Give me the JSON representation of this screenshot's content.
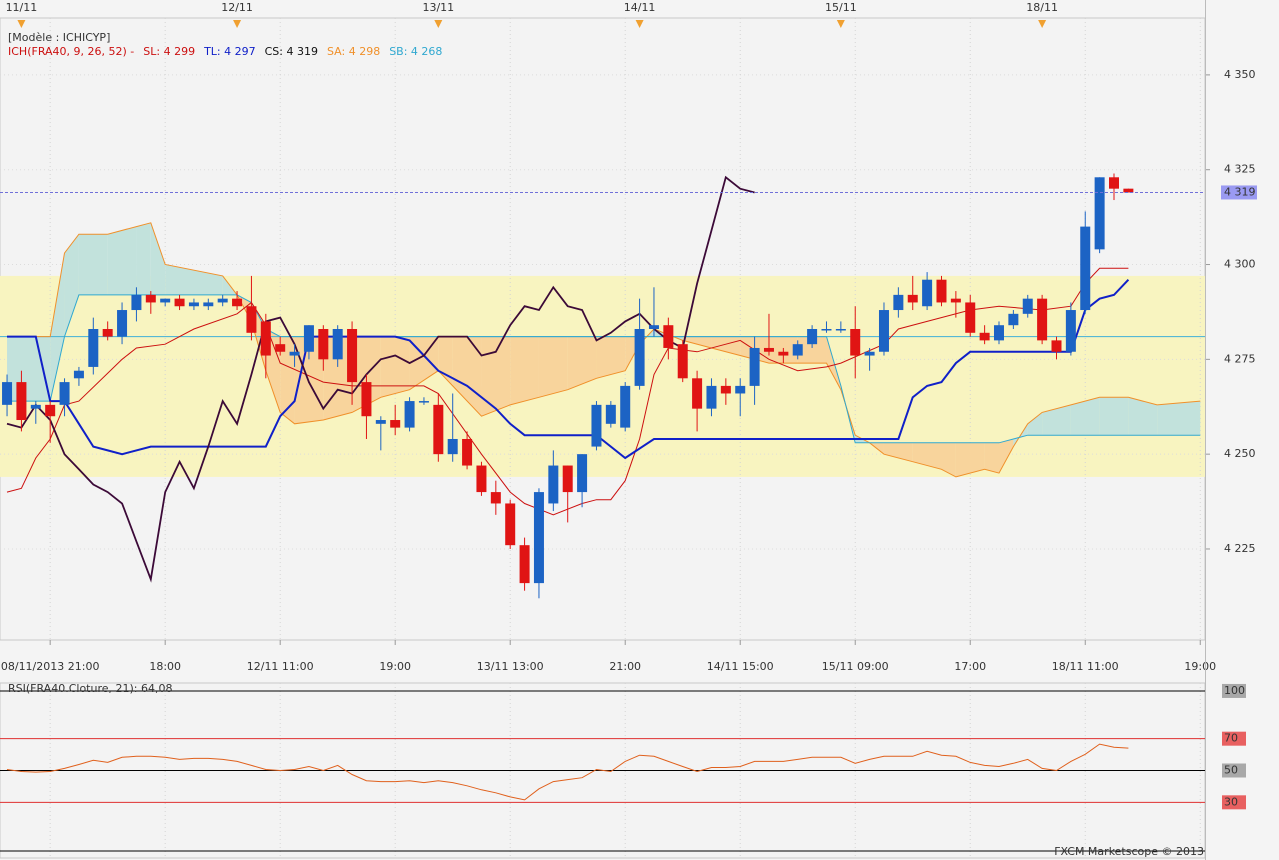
{
  "chart_data": [
    {
      "type": "candlestick",
      "model_label": "[Modèle : ICHICYP]",
      "indicator_label": "ICH(FRA40, 9, 26, 52) -",
      "x": [
        0,
        1,
        2,
        3,
        4,
        5,
        6,
        7,
        8,
        9,
        10,
        11,
        12,
        13,
        14,
        15,
        16,
        17,
        18,
        19,
        20,
        21,
        22,
        23,
        24,
        25,
        26,
        27,
        28,
        29,
        30,
        31,
        32,
        33,
        34,
        35,
        36,
        37,
        38,
        39,
        40,
        41,
        42,
        43,
        44,
        45,
        46,
        47,
        48,
        49,
        50,
        51,
        52,
        53,
        54,
        55,
        56,
        57,
        58,
        59,
        60,
        61,
        62,
        63,
        64,
        65,
        66,
        67,
        68,
        69,
        70,
        71,
        72,
        73,
        74,
        75,
        76,
        77,
        78
      ],
      "open": [
        4263,
        4269,
        4262,
        4263,
        4263,
        4270,
        4273,
        4283,
        4281,
        4288,
        4292,
        4290,
        4291,
        4289,
        4289,
        4290,
        4291,
        4289,
        4285,
        4279,
        4276,
        4277,
        4283,
        4275,
        4283,
        4269,
        4258,
        4259,
        4257,
        4264,
        4263,
        4250,
        4254,
        4247,
        4240,
        4237,
        4226,
        4216,
        4237,
        4247,
        4240,
        4252,
        4258,
        4257,
        4268,
        4283,
        4284,
        4279,
        4270,
        4262,
        4268,
        4266,
        4268,
        4278,
        4277,
        4276,
        4279,
        4283,
        4283,
        4283,
        4276,
        4277,
        4288,
        4292,
        4289,
        4296,
        4291,
        4290,
        4282,
        4280,
        4284,
        4287,
        4291,
        4280,
        4277,
        4288,
        4304,
        4323,
        4320
      ],
      "high": [
        4271,
        4272,
        4264,
        4264,
        4270,
        4273,
        4286,
        4285,
        4290,
        4294,
        4293,
        4291,
        4292,
        4291,
        4291,
        4292,
        4293,
        4297,
        4287,
        4281,
        4279,
        4284,
        4284,
        4284,
        4285,
        4271,
        4260,
        4263,
        4265,
        4265,
        4266,
        4266,
        4256,
        4248,
        4243,
        4238,
        4228,
        4241,
        4251,
        4247,
        4250,
        4264,
        4264,
        4269,
        4291,
        4294,
        4286,
        4280,
        4272,
        4270,
        4270,
        4270,
        4281,
        4287,
        4278,
        4280,
        4284,
        4285,
        4285,
        4289,
        4278,
        4290,
        4294,
        4297,
        4298,
        4297,
        4293,
        4292,
        4284,
        4285,
        4288,
        4292,
        4292,
        4281,
        4290,
        4314,
        4323,
        4324,
        4320
      ],
      "low": [
        4260,
        4256,
        4258,
        4253,
        4260,
        4268,
        4271,
        4280,
        4279,
        4285,
        4287,
        4289,
        4288,
        4288,
        4288,
        4289,
        4288,
        4280,
        4270,
        4276,
        4273,
        4275,
        4272,
        4273,
        4263,
        4254,
        4251,
        4255,
        4256,
        4263,
        4248,
        4248,
        4246,
        4239,
        4234,
        4225,
        4214,
        4212,
        4235,
        4232,
        4236,
        4251,
        4257,
        4256,
        4267,
        4281,
        4275,
        4269,
        4256,
        4260,
        4263,
        4260,
        4263,
        4276,
        4274,
        4275,
        4278,
        4282,
        4282,
        4270,
        4272,
        4276,
        4286,
        4288,
        4288,
        4289,
        4286,
        4281,
        4279,
        4279,
        4283,
        4286,
        4279,
        4275,
        4276,
        4287,
        4303,
        4317,
        4319
      ],
      "close": [
        4269,
        4259,
        4263,
        4260,
        4269,
        4272,
        4283,
        4281,
        4288,
        4292,
        4290,
        4291,
        4289,
        4290,
        4290,
        4291,
        4289,
        4282,
        4276,
        4277,
        4277,
        4284,
        4275,
        4283,
        4269,
        4260,
        4259,
        4257,
        4264,
        4264,
        4250,
        4254,
        4247,
        4240,
        4237,
        4226,
        4216,
        4240,
        4247,
        4240,
        4250,
        4263,
        4263,
        4268,
        4283,
        4284,
        4278,
        4270,
        4262,
        4268,
        4266,
        4268,
        4278,
        4277,
        4276,
        4279,
        4283,
        4283,
        4283,
        4276,
        4277,
        4288,
        4292,
        4290,
        4296,
        4290,
        4290,
        4282,
        4280,
        4284,
        4287,
        4291,
        4280,
        4277,
        4288,
        4310,
        4323,
        4320,
        4319
      ],
      "up_color": "#1c63c4",
      "down_color": "#e01414",
      "series": [
        {
          "name": "SL: 4 299",
          "color": "#cc1010",
          "x": [
            0,
            1,
            2,
            3,
            4,
            5,
            8,
            9,
            11,
            13,
            16,
            17,
            18,
            19,
            22,
            24,
            29,
            30,
            33,
            35,
            36,
            38,
            40,
            41,
            42,
            43,
            44,
            45,
            46,
            48,
            50,
            51,
            53,
            55,
            57,
            58,
            61,
            62,
            64,
            67,
            69,
            72,
            74,
            75,
            76,
            78
          ],
          "values": [
            4240,
            4241,
            4249,
            4254,
            4263,
            4264,
            4275,
            4278,
            4279,
            4283,
            4287,
            4290,
            4284,
            4274,
            4269,
            4268,
            4268,
            4266,
            4250,
            4240,
            4237,
            4234,
            4237,
            4238,
            4238,
            4243,
            4254,
            4271,
            4278,
            4277,
            4279,
            4280,
            4275,
            4272,
            4273,
            4274,
            4279,
            4283,
            4285,
            4288,
            4289,
            4288,
            4289,
            4295,
            4299,
            4299
          ]
        },
        {
          "name": "TL: 4 297",
          "color": "#1020c8",
          "x": [
            0,
            2,
            3,
            4,
            5,
            6,
            7,
            8,
            10,
            18,
            19,
            20,
            21,
            27,
            28,
            29,
            30,
            31,
            32,
            34,
            35,
            36,
            41,
            43,
            45,
            58,
            62,
            63,
            64,
            65,
            66,
            67,
            74,
            75,
            76,
            77,
            78
          ],
          "values": [
            4281,
            4281,
            4264,
            4264,
            4258,
            4252,
            4251,
            4250,
            4252,
            4252,
            4260,
            4264,
            4281,
            4281,
            4280,
            4276,
            4272,
            4270,
            4268,
            4262,
            4258,
            4255,
            4255,
            4249,
            4254,
            4254,
            4254,
            4265,
            4268,
            4269,
            4274,
            4277,
            4277,
            4288,
            4291,
            4292,
            4296
          ]
        },
        {
          "name": "CS: 4 319",
          "color": "#3c0a38",
          "x": [
            0,
            1,
            2,
            3,
            4,
            5,
            6,
            7,
            8,
            9,
            10,
            11,
            12,
            13,
            14,
            15,
            16,
            17,
            18,
            19,
            20,
            21,
            22,
            23,
            24,
            25,
            26,
            27,
            28,
            29,
            30,
            31,
            32,
            33,
            34,
            35,
            36,
            37,
            38,
            39,
            40,
            41,
            42,
            43,
            44,
            45,
            46,
            47,
            48,
            49,
            50,
            51,
            52
          ],
          "values": [
            4258,
            4257,
            4263,
            4259,
            4250,
            4246,
            4242,
            4240,
            4237,
            4227,
            4217,
            4240,
            4248,
            4241,
            4252,
            4264,
            4258,
            4271,
            4285,
            4286,
            4279,
            4269,
            4262,
            4267,
            4266,
            4271,
            4275,
            4276,
            4274,
            4276,
            4281,
            4281,
            4281,
            4276,
            4277,
            4284,
            4289,
            4288,
            4294,
            4289,
            4288,
            4280,
            4282,
            4285,
            4287,
            4283,
            4280,
            4278,
            4295,
            4309,
            4323,
            4320,
            4319
          ]
        },
        {
          "name": "SA: 4 298",
          "color": "#f0902a",
          "x": [
            0,
            3,
            4,
            5,
            7,
            9,
            10,
            11,
            15,
            16,
            17,
            18,
            19,
            20,
            22,
            24,
            26,
            28,
            30,
            31,
            33,
            35,
            37,
            39,
            41,
            43,
            44,
            45,
            47,
            49,
            51,
            53,
            55,
            57,
            58,
            59,
            60,
            61,
            63,
            65,
            66,
            68,
            69,
            70,
            71,
            72,
            74,
            76,
            78,
            80,
            83
          ],
          "values": [
            4281,
            4281,
            4303,
            4308,
            4308,
            4310,
            4311,
            4300,
            4297,
            4292,
            4285,
            4272,
            4261,
            4258,
            4259,
            4261,
            4265,
            4267,
            4272,
            4268,
            4260,
            4263,
            4265,
            4267,
            4270,
            4272,
            4279,
            4283,
            4280,
            4278,
            4276,
            4274,
            4274,
            4274,
            4267,
            4255,
            4253,
            4250,
            4248,
            4246,
            4244,
            4246,
            4245,
            4252,
            4258,
            4261,
            4263,
            4265,
            4265,
            4263,
            4264
          ]
        },
        {
          "name": "SB: 4 268",
          "color": "#30a8d0",
          "x": [
            0,
            3,
            4,
            5,
            7,
            9,
            10,
            11,
            15,
            16,
            17,
            18,
            19,
            20,
            22,
            24,
            26,
            28,
            30,
            31,
            33,
            35,
            37,
            39,
            41,
            43,
            44,
            45,
            47,
            49,
            51,
            53,
            55,
            57,
            58,
            59,
            60,
            61,
            63,
            65,
            66,
            68,
            69,
            70,
            71,
            72,
            74,
            76,
            78,
            80,
            83
          ],
          "values": [
            4264,
            4264,
            4281,
            4292,
            4292,
            4292,
            4292,
            4292,
            4292,
            4292,
            4290,
            4283,
            4281,
            4281,
            4281,
            4281,
            4281,
            4281,
            4281,
            4281,
            4281,
            4281,
            4281,
            4281,
            4281,
            4281,
            4281,
            4281,
            4281,
            4281,
            4281,
            4281,
            4281,
            4281,
            4268,
            4253,
            4253,
            4253,
            4253,
            4253,
            4253,
            4253,
            4253,
            4254,
            4255,
            4255,
            4255,
            4255,
            4255,
            4255,
            4255
          ]
        }
      ],
      "cloud_colors": [
        "#c2e2dc",
        "#f8d49c"
      ],
      "zone": [
        4244,
        4297
      ],
      "zone_color": "#f8f4c0",
      "level": 4281,
      "level_color": "#40b0d8",
      "last_price": {
        "value": 4319,
        "label": "4 319"
      },
      "xlim": [
        -0.49,
        83.33
      ],
      "ylim": [
        4201,
        4365
      ],
      "yticks": [
        {
          "value": 4225,
          "label": "4 225"
        },
        {
          "value": 4250,
          "label": "4 250"
        },
        {
          "value": 4275,
          "label": "4 275"
        },
        {
          "value": 4300,
          "label": "4 300"
        },
        {
          "value": 4325,
          "label": "4 325"
        },
        {
          "value": 4350,
          "label": "4 350"
        }
      ],
      "xticks": [
        {
          "value": 3,
          "label": "08/11/2013 21:00"
        },
        {
          "value": 11,
          "label": "18:00"
        },
        {
          "value": 19,
          "label": "12/11 11:00"
        },
        {
          "value": 27,
          "label": "19:00"
        },
        {
          "value": 35,
          "label": "13/11 13:00"
        },
        {
          "value": 43,
          "label": "21:00"
        },
        {
          "value": 51,
          "label": "14/11 15:00"
        },
        {
          "value": 59,
          "label": "15/11 09:00"
        },
        {
          "value": 67,
          "label": "17:00"
        },
        {
          "value": 75,
          "label": "18/11 11:00"
        },
        {
          "value": 83,
          "label": "19:00"
        }
      ],
      "top_ticks": [
        {
          "value": 1,
          "label": "11/11"
        },
        {
          "value": 16,
          "label": "12/11"
        },
        {
          "value": 30,
          "label": "13/11"
        },
        {
          "value": 44,
          "label": "14/11"
        },
        {
          "value": 58,
          "label": "15/11"
        },
        {
          "value": 72,
          "label": "18/11"
        }
      ],
      "grid": true
    },
    {
      "type": "line",
      "title": "RSI(FRA40.Cloture, 21): 64,08",
      "x": [
        0,
        1,
        2,
        3,
        4,
        5,
        6,
        7,
        8,
        9,
        10,
        11,
        12,
        13,
        14,
        15,
        16,
        17,
        18,
        19,
        20,
        21,
        22,
        23,
        24,
        25,
        26,
        27,
        28,
        29,
        30,
        31,
        32,
        33,
        34,
        35,
        36,
        37,
        38,
        39,
        40,
        41,
        42,
        43,
        44,
        45,
        46,
        47,
        48,
        49,
        50,
        51,
        52,
        53,
        54,
        55,
        56,
        57,
        58,
        59,
        60,
        61,
        62,
        63,
        64,
        65,
        66,
        67,
        68,
        69,
        70,
        71,
        72,
        73,
        74,
        75,
        76,
        77,
        78
      ],
      "series": [
        {
          "color": "#e0601c",
          "values": [
            50.6,
            49.4,
            49.0,
            49.4,
            51.3,
            53.8,
            56.4,
            55.1,
            58.3,
            58.9,
            58.9,
            58.3,
            57.0,
            57.6,
            57.6,
            57.0,
            55.7,
            53.2,
            50.6,
            50.0,
            50.6,
            52.5,
            50.0,
            53.2,
            47.5,
            43.6,
            43.0,
            43.0,
            43.6,
            42.4,
            43.6,
            42.4,
            40.4,
            37.9,
            36.0,
            33.4,
            31.5,
            38.5,
            43.0,
            44.3,
            45.5,
            50.6,
            49.4,
            55.7,
            59.6,
            58.9,
            55.7,
            52.5,
            49.4,
            51.9,
            51.9,
            52.5,
            55.7,
            55.7,
            55.7,
            57.0,
            58.3,
            58.3,
            58.3,
            54.5,
            57.0,
            58.9,
            58.9,
            58.9,
            62.1,
            59.6,
            58.9,
            55.1,
            53.2,
            52.5,
            54.5,
            57.0,
            51.3,
            50.0,
            55.7,
            60.2,
            66.6,
            64.6,
            64.08
          ]
        }
      ],
      "xlim": [
        -0.49,
        83.33
      ],
      "ylim": [
        -5,
        105
      ],
      "yticks": [
        100,
        70,
        50,
        30
      ],
      "tick_colors": [
        "#000000",
        "#e03030",
        "#000000",
        "#e03030"
      ],
      "xticks": [
        3,
        11,
        19,
        27,
        35,
        43,
        51,
        59,
        67,
        75,
        83
      ],
      "grid": true
    }
  ],
  "footer": "FXCM Marketscope © 2013"
}
